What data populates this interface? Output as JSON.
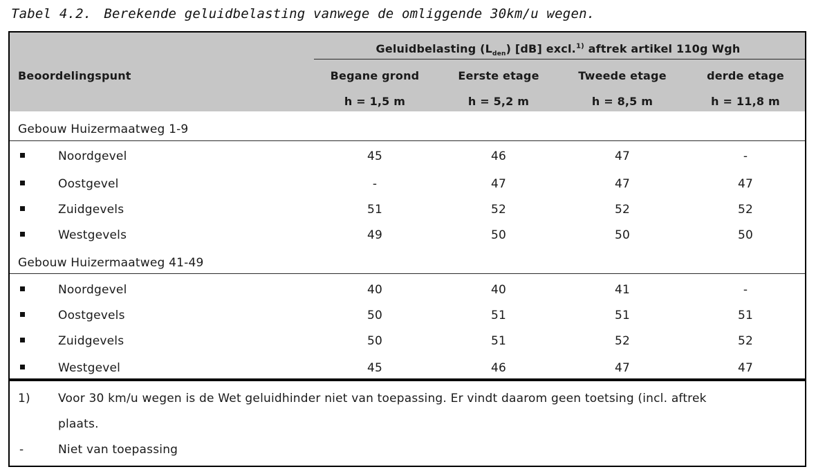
{
  "caption": {
    "number": "Tabel 4.2.",
    "title": "Berekende geluidbelasting vanwege de omliggende 30km/u wegen."
  },
  "header": {
    "group_pre": "Geluidbelasting (L",
    "group_sub": "den",
    "group_mid": ") [dB] excl.",
    "group_sup": "1)",
    "group_post": " aftrek artikel 110g Wgh",
    "row_label": "Beoordelingspunt",
    "columns": [
      {
        "name": "Begane grond",
        "height": "h = 1,5 m"
      },
      {
        "name": "Eerste etage",
        "height": "h = 5,2 m"
      },
      {
        "name": "Tweede etage",
        "height": "h = 8,5 m"
      },
      {
        "name": "derde etage",
        "height": "h = 11,8 m"
      }
    ]
  },
  "groups": [
    {
      "title": "Gebouw Huizermaatweg 1-9",
      "rows": [
        {
          "label": "Noordgevel",
          "values": [
            "45",
            "46",
            "47",
            "-"
          ]
        },
        {
          "label": "Oostgevel",
          "values": [
            "-",
            "47",
            "47",
            "47"
          ]
        },
        {
          "label": "Zuidgevels",
          "values": [
            "51",
            "52",
            "52",
            "52"
          ]
        },
        {
          "label": "Westgevels",
          "values": [
            "49",
            "50",
            "50",
            "50"
          ]
        }
      ]
    },
    {
      "title": "Gebouw Huizermaatweg 41-49",
      "rows": [
        {
          "label": "Noordgevel",
          "values": [
            "40",
            "40",
            "41",
            "-"
          ]
        },
        {
          "label": "Oostgevels",
          "values": [
            "50",
            "51",
            "51",
            "51"
          ]
        },
        {
          "label": "Zuidgevels",
          "values": [
            "50",
            "51",
            "52",
            "52"
          ]
        },
        {
          "label": "Westgevel",
          "values": [
            "45",
            "46",
            "47",
            "47"
          ]
        }
      ]
    }
  ],
  "notes": [
    {
      "mark": "1)",
      "lines": [
        "Voor 30 km/u wegen is de Wet geluidhinder niet van toepassing. Er vindt daarom geen toetsing (incl. aftrek",
        "plaats."
      ]
    },
    {
      "mark": "-",
      "lines": [
        "Niet van toepassing"
      ]
    }
  ]
}
